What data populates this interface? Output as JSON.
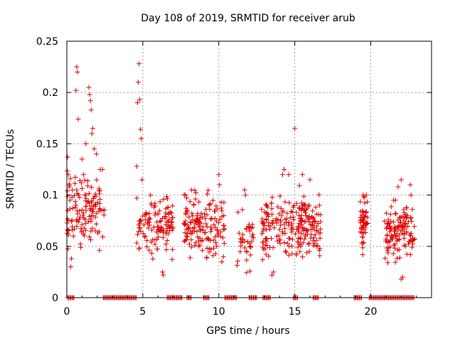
{
  "chart_data": {
    "type": "scatter",
    "title": "Day 108 of 2019, SRMTID for receiver arub",
    "xlabel": "GPS time / hours",
    "ylabel": "SRMTID / TECUs",
    "xlim": [
      0,
      24
    ],
    "ylim": [
      0,
      0.25
    ],
    "xticks": [
      0,
      5,
      10,
      15,
      20
    ],
    "xtick_labels": [
      "0",
      "5",
      "10",
      "15",
      "20"
    ],
    "yticks": [
      0,
      0.05,
      0.1,
      0.15,
      0.2,
      0.25
    ],
    "ytick_labels": [
      "0",
      "0.05",
      "0.1",
      "0.15",
      "0.2",
      "0.25"
    ],
    "grid": true,
    "legend": "none",
    "marker": "plus",
    "color": "#e00000",
    "series": [
      {
        "name": "SRMTID",
        "segments": [
          {
            "x0": 0.0,
            "x1": 2.5,
            "mean": 0.085,
            "spread": 0.03,
            "n": 130,
            "highlights": [
              [
                0.05,
                0.137
              ],
              [
                0.1,
                0.12
              ],
              [
                0.15,
                0.108
              ],
              [
                0.2,
                0.095
              ],
              [
                0.25,
                0.03
              ],
              [
                0.3,
                0.038
              ],
              [
                0.6,
                0.202
              ],
              [
                0.65,
                0.225
              ],
              [
                0.7,
                0.22
              ],
              [
                0.75,
                0.174
              ],
              [
                1.0,
                0.135
              ],
              [
                1.1,
                0.12
              ],
              [
                1.25,
                0.15
              ],
              [
                1.45,
                0.205
              ],
              [
                1.5,
                0.198
              ],
              [
                1.55,
                0.192
              ],
              [
                1.6,
                0.183
              ],
              [
                1.65,
                0.16
              ],
              [
                1.7,
                0.165
              ],
              [
                1.8,
                0.145
              ],
              [
                1.95,
                0.14
              ],
              [
                2.2,
                0.125
              ]
            ]
          },
          {
            "x0": 4.6,
            "x1": 7.0,
            "mean": 0.07,
            "spread": 0.025,
            "n": 120,
            "highlights": [
              [
                4.6,
                0.128
              ],
              [
                4.65,
                0.19
              ],
              [
                4.7,
                0.21
              ],
              [
                4.75,
                0.228
              ],
              [
                4.8,
                0.193
              ],
              [
                4.85,
                0.164
              ],
              [
                4.9,
                0.155
              ],
              [
                4.95,
                0.115
              ],
              [
                5.5,
                0.1
              ],
              [
                6.3,
                0.025
              ],
              [
                6.35,
                0.022
              ]
            ]
          },
          {
            "x0": 7.7,
            "x1": 10.4,
            "mean": 0.07,
            "spread": 0.028,
            "n": 150,
            "highlights": [
              [
                7.8,
                0.1
              ],
              [
                8.2,
                0.105
              ],
              [
                10.0,
                0.12
              ],
              [
                10.05,
                0.11
              ],
              [
                10.2,
                0.035
              ],
              [
                10.3,
                0.04
              ]
            ]
          },
          {
            "x0": 11.2,
            "x1": 12.3,
            "mean": 0.06,
            "spread": 0.025,
            "n": 40,
            "highlights": [
              [
                11.7,
                0.105
              ],
              [
                11.75,
                0.1
              ]
            ]
          },
          {
            "x0": 12.8,
            "x1": 16.7,
            "mean": 0.07,
            "spread": 0.028,
            "n": 230,
            "highlights": [
              [
                14.2,
                0.12
              ],
              [
                14.3,
                0.125
              ],
              [
                14.6,
                0.12
              ],
              [
                15.0,
                0.165
              ],
              [
                13.6,
                0.025
              ],
              [
                13.5,
                0.022
              ],
              [
                16.0,
                0.115
              ],
              [
                15.5,
                0.12
              ]
            ]
          },
          {
            "x0": 19.3,
            "x1": 19.8,
            "mean": 0.07,
            "spread": 0.022,
            "n": 50,
            "highlights": [
              [
                19.5,
                0.1
              ],
              [
                19.7,
                0.1
              ],
              [
                19.6,
                0.098
              ]
            ]
          },
          {
            "x0": 20.9,
            "x1": 22.9,
            "mean": 0.065,
            "spread": 0.025,
            "n": 130,
            "highlights": [
              [
                21.5,
                0.095
              ],
              [
                21.8,
                0.108
              ],
              [
                22.0,
                0.115
              ],
              [
                22.6,
                0.11
              ],
              [
                22.65,
                0.1
              ],
              [
                22.1,
                0.02
              ],
              [
                22.0,
                0.018
              ]
            ]
          }
        ],
        "zero_segments": [
          [
            0.05,
            0.5
          ],
          [
            2.4,
            4.6
          ],
          [
            6.6,
            7.6
          ],
          [
            7.9,
            8.2
          ],
          [
            9.0,
            9.4
          ],
          [
            10.4,
            11.2
          ],
          [
            12.0,
            12.5
          ],
          [
            12.9,
            13.4
          ],
          [
            14.9,
            15.2
          ],
          [
            16.2,
            16.6
          ],
          [
            18.9,
            19.4
          ],
          [
            19.9,
            22.9
          ]
        ]
      }
    ]
  }
}
